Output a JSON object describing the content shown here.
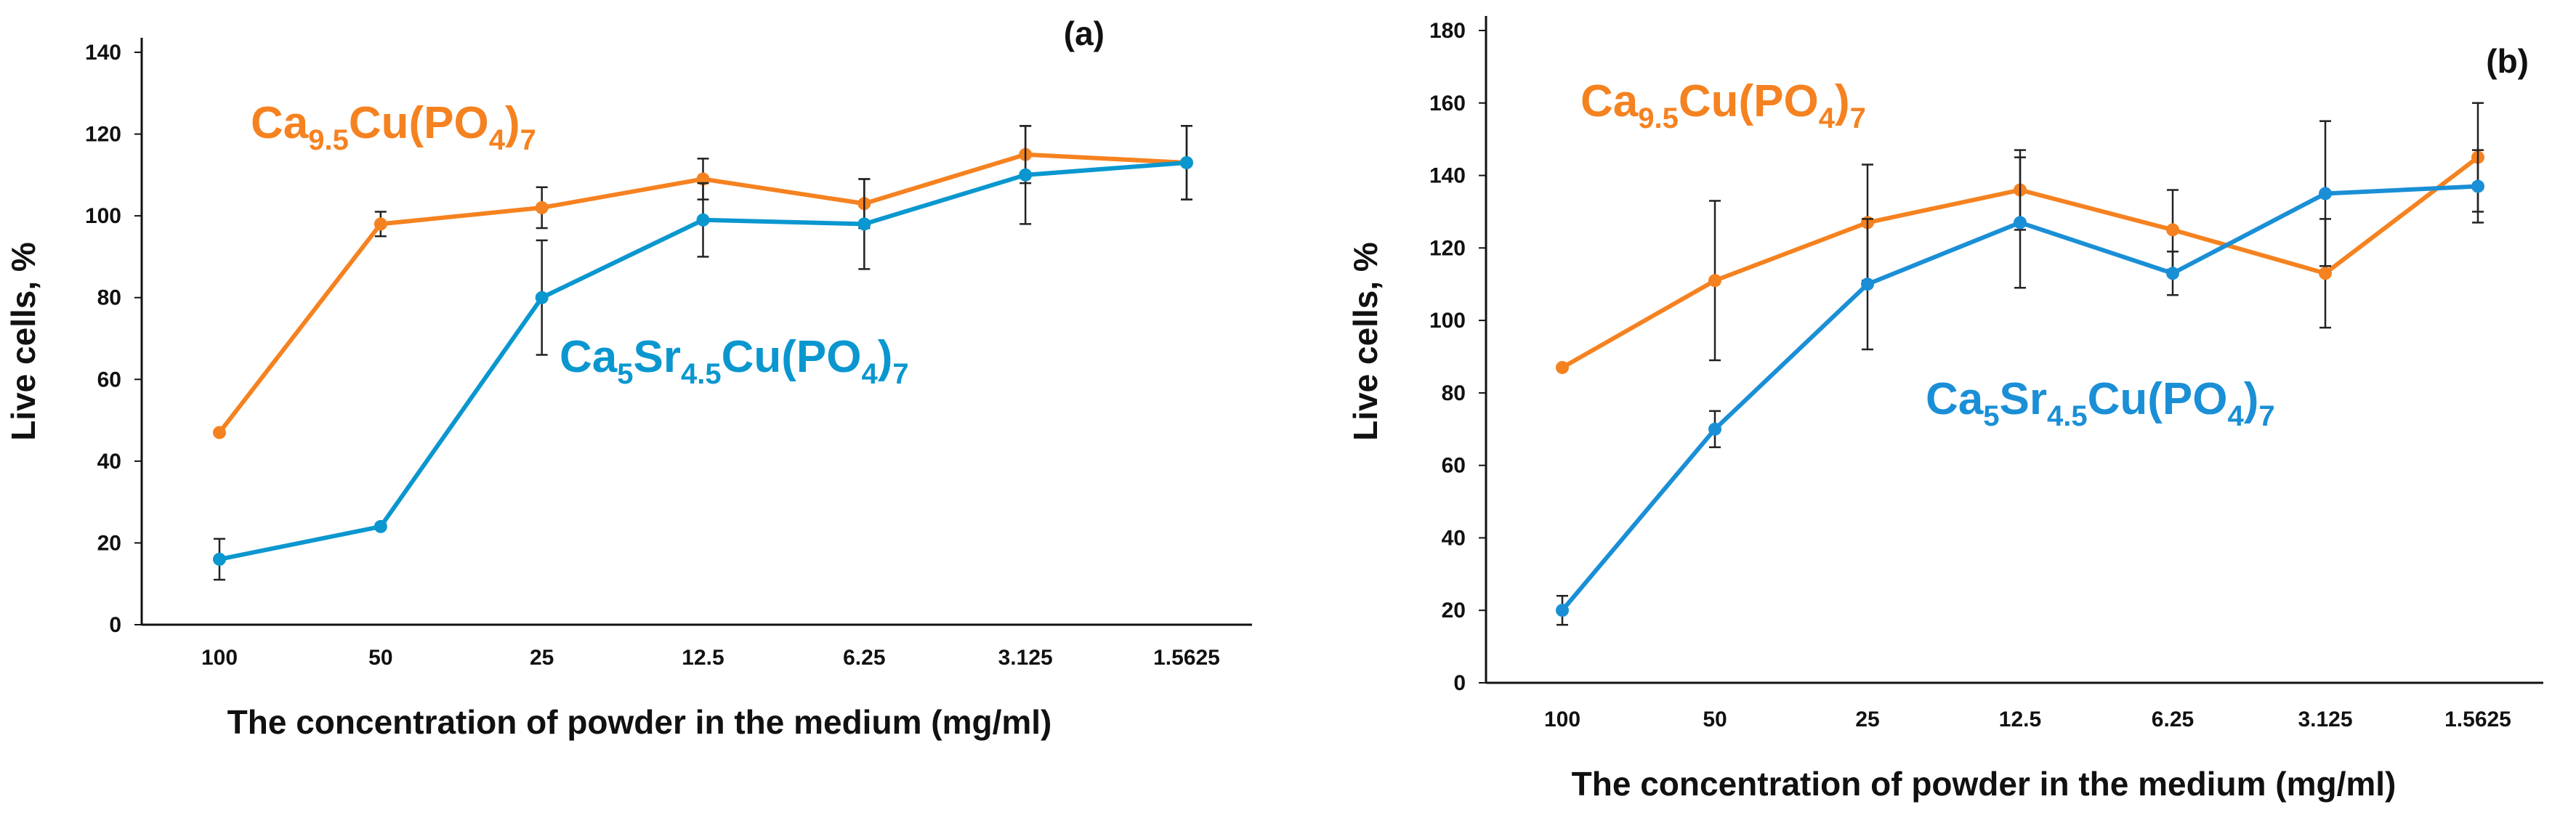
{
  "chart_data": [
    {
      "type": "line",
      "panel_label": "(a)",
      "categories": [
        "100",
        "50",
        "25",
        "12.5",
        "6.25",
        "3.125",
        "1.5625"
      ],
      "xlabel": "The concentration of powder in the medium (mg/ml)",
      "ylabel": "Live cells, %",
      "ylim": [
        0,
        140
      ],
      "yticks": [
        "0",
        "20",
        "40",
        "60",
        "80",
        "100",
        "120",
        "140"
      ],
      "grid": false,
      "error_bars": true,
      "series": [
        {
          "name": "Ca9.5Cu(PO4)7",
          "label_parts": [
            {
              "text": "Ca",
              "sub": false
            },
            {
              "text": "9.5",
              "sub": true
            },
            {
              "text": "Cu(PO",
              "sub": false
            },
            {
              "text": "4",
              "sub": true
            },
            {
              "text": ")",
              "sub": false
            },
            {
              "text": "7",
              "sub": true
            }
          ],
          "color": "#F58220",
          "values": [
            47,
            98,
            102,
            109,
            103,
            115,
            113
          ],
          "errors": [
            0,
            3,
            5,
            5,
            6,
            7,
            9
          ]
        },
        {
          "name": "Ca5Sr4.5Cu(PO4)7",
          "label_parts": [
            {
              "text": "Ca",
              "sub": false
            },
            {
              "text": "5",
              "sub": true
            },
            {
              "text": "Sr",
              "sub": false
            },
            {
              "text": "4.5",
              "sub": true
            },
            {
              "text": "Cu(PO",
              "sub": false
            },
            {
              "text": "4",
              "sub": true
            },
            {
              "text": ")",
              "sub": false
            },
            {
              "text": "7",
              "sub": true
            }
          ],
          "color": "#0A97CF",
          "values": [
            16,
            24,
            80,
            99,
            98,
            110,
            113
          ],
          "errors": [
            5,
            0,
            14,
            9,
            11,
            12,
            9
          ]
        }
      ]
    },
    {
      "type": "line",
      "panel_label": "(b)",
      "categories": [
        "100",
        "50",
        "25",
        "12.5",
        "6.25",
        "3.125",
        "1.5625"
      ],
      "xlabel": "The concentration of powder in the medium (mg/ml)",
      "ylabel": "Live cells, %",
      "ylim": [
        0,
        180
      ],
      "yticks": [
        "0",
        "20",
        "40",
        "60",
        "80",
        "100",
        "120",
        "140",
        "160",
        "180"
      ],
      "grid": false,
      "error_bars": true,
      "series": [
        {
          "name": "Ca9.5Cu(PO4)7",
          "label_parts": [
            {
              "text": "Ca",
              "sub": false
            },
            {
              "text": "9.5",
              "sub": true
            },
            {
              "text": "Cu(PO",
              "sub": false
            },
            {
              "text": "4",
              "sub": true
            },
            {
              "text": ")",
              "sub": false
            },
            {
              "text": "7",
              "sub": true
            }
          ],
          "color": "#F58220",
          "values": [
            87,
            111,
            127,
            136,
            125,
            113,
            145
          ],
          "errors": [
            0,
            22,
            16,
            11,
            11,
            15,
            15
          ]
        },
        {
          "name": "Ca5Sr4.5Cu(PO4)7",
          "label_parts": [
            {
              "text": "Ca",
              "sub": false
            },
            {
              "text": "5",
              "sub": true
            },
            {
              "text": "Sr",
              "sub": false
            },
            {
              "text": "4.5",
              "sub": true
            },
            {
              "text": "Cu(PO",
              "sub": false
            },
            {
              "text": "4",
              "sub": true
            },
            {
              "text": ")",
              "sub": false
            },
            {
              "text": "7",
              "sub": true
            }
          ],
          "color": "#1A8FD6",
          "values": [
            20,
            70,
            110,
            127,
            113,
            135,
            137
          ],
          "errors": [
            4,
            5,
            18,
            18,
            6,
            20,
            10
          ]
        }
      ]
    }
  ]
}
